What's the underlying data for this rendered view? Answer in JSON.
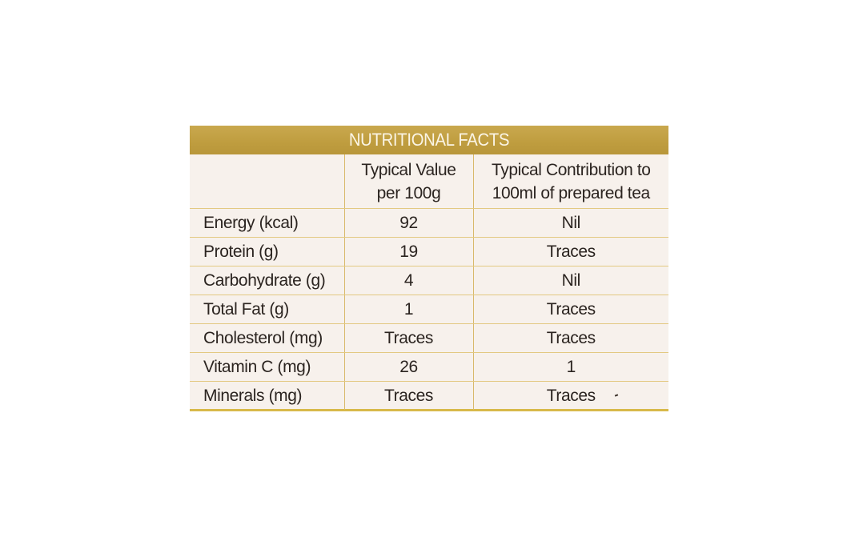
{
  "title": "NUTRITIONAL FACTS",
  "columns": {
    "nutrient": "",
    "per100g": [
      "Typical Value",
      "per 100g"
    ],
    "per100ml": [
      "Typical Contribution to",
      "100ml of prepared tea"
    ]
  },
  "rows": [
    {
      "nutrient": "Energy (kcal)",
      "per100g": "92",
      "per100ml": "Nil"
    },
    {
      "nutrient": "Protein (g)",
      "per100g": "19",
      "per100ml": "Traces"
    },
    {
      "nutrient": "Carbohydrate (g)",
      "per100g": "4",
      "per100ml": "Nil"
    },
    {
      "nutrient": "Total Fat (g)",
      "per100g": "1",
      "per100ml": "Traces"
    },
    {
      "nutrient": "Cholesterol (mg)",
      "per100g": "Traces",
      "per100ml": "Traces"
    },
    {
      "nutrient": "Vitamin C (mg)",
      "per100g": "26",
      "per100ml": "1"
    },
    {
      "nutrient": "Minerals (mg)",
      "per100g": "Traces",
      "per100ml": "Traces"
    }
  ],
  "colors": {
    "header_gold": "#c2a045",
    "panel_background": "#f7f1ec",
    "grid_lines": "#d9b96a",
    "text": "#2b2420"
  }
}
